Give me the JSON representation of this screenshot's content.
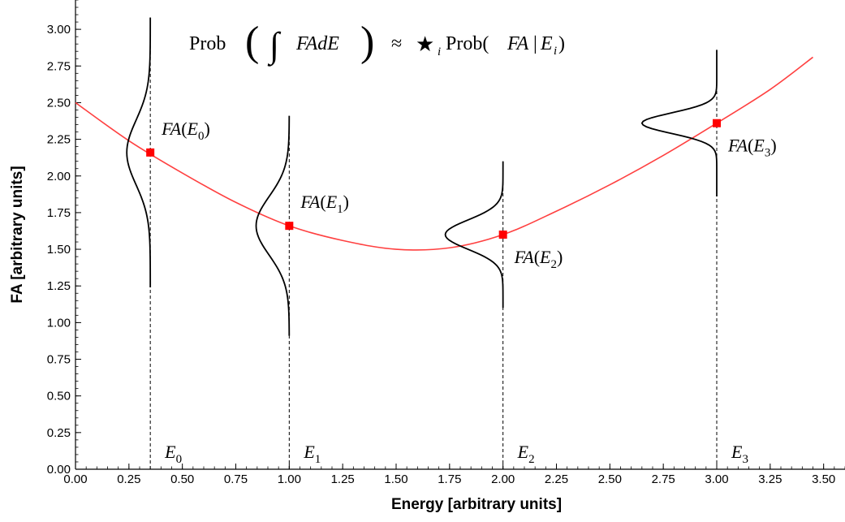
{
  "chart_data": {
    "type": "line",
    "title": "",
    "formula": {
      "prob1": "Prob",
      "open_paren": "(",
      "integral": "∫",
      "integrand": "FAdE",
      "close_paren": ")",
      "approx": "≈",
      "star": "★",
      "sub_i": "i",
      "prob2": "Prob(",
      "fa": "FA",
      "bar": "|",
      "e": "E",
      "sub_e": "i",
      "end": ")"
    },
    "xlabel": "Energy [arbitrary units]",
    "ylabel": "FA [arbitrary units]",
    "xlim": [
      0,
      3.6
    ],
    "ylim": [
      0,
      3.2
    ],
    "x_ticks": [
      "0.00",
      "0.25",
      "0.50",
      "0.75",
      "1.00",
      "1.25",
      "1.50",
      "1.75",
      "2.00",
      "2.25",
      "2.50",
      "2.75",
      "3.00",
      "3.25",
      "3.50"
    ],
    "y_ticks": [
      "0.00",
      "0.25",
      "0.50",
      "0.75",
      "1.00",
      "1.25",
      "1.50",
      "1.75",
      "2.00",
      "2.25",
      "2.50",
      "2.75",
      "3.00"
    ],
    "grid": false,
    "curve_color": "#ff4040",
    "point_color": "#ff0000",
    "curve": {
      "x": [
        0,
        0.25,
        0.5,
        0.75,
        1.0,
        1.25,
        1.5,
        1.75,
        2.0,
        2.25,
        2.5,
        2.75,
        3.0,
        3.25,
        3.45
      ],
      "y": [
        2.5,
        2.24,
        2.02,
        1.82,
        1.66,
        1.56,
        1.5,
        1.51,
        1.6,
        1.76,
        1.94,
        2.14,
        2.36,
        2.59,
        2.81
      ]
    },
    "points": [
      {
        "x": 0.35,
        "y": 2.16,
        "label": "FA",
        "sub": "0",
        "e_label": "E",
        "e_sub": "0",
        "sigma": 0.22,
        "half_range": 0.92,
        "amp": 0.11,
        "label_side": "right-above"
      },
      {
        "x": 1.0,
        "y": 1.66,
        "label": "FA",
        "sub": "1",
        "e_label": "E",
        "e_sub": "1",
        "sigma": 0.2,
        "half_range": 0.75,
        "amp": 0.155,
        "label_side": "right-above"
      },
      {
        "x": 2.0,
        "y": 1.6,
        "label": "FA",
        "sub": "2",
        "e_label": "E",
        "e_sub": "2",
        "sigma": 0.1,
        "half_range": 0.5,
        "amp": 0.27,
        "label_side": "right-below"
      },
      {
        "x": 3.0,
        "y": 2.36,
        "label": "FA",
        "sub": "3",
        "e_label": "E",
        "e_sub": "3",
        "sigma": 0.07,
        "half_range": 0.5,
        "amp": 0.35,
        "label_side": "right-below"
      }
    ]
  }
}
